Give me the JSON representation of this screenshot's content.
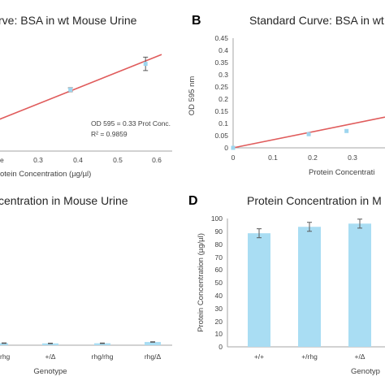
{
  "colors": {
    "bar": "#a9ddf3",
    "marker": "#9dd5ee",
    "fit_line": "#e05c5c",
    "axis": "#a6a6a6",
    "error": "#595959"
  },
  "panels": {
    "A": {
      "title_visible": "rve: BSA in wt Mouse Urine",
      "xlabel_visible": "otein Concentration (µg/µl)",
      "x_ticks": [
        "e",
        "0.3",
        "0.4",
        "0.5",
        "0.6"
      ],
      "equation": "OD 595 = 0.33 Prot Conc.",
      "r2": "R² = 0.9859"
    },
    "B": {
      "label": "B",
      "title_visible": "Standard Curve: BSA in wt",
      "ylabel": "OD 595 nm",
      "xlabel_visible": "Protein Concentrati",
      "y_ticks": [
        "0.45",
        "0.4",
        "0.35",
        "0.3",
        "0.25",
        "0.2",
        "0.15",
        "0.1",
        "0.05",
        "0"
      ],
      "x_ticks": [
        "0",
        "0.1",
        "0.2",
        "0.3"
      ]
    },
    "C": {
      "title_visible": "centration in Mouse Urine",
      "xlabel": "Genotype",
      "x_ticks": [
        "rhg",
        "+/Δ",
        "rhg/rhg",
        "rhg/Δ"
      ]
    },
    "D": {
      "label": "D",
      "title_visible": "Protein Concentration in M",
      "ylabel": "Protein Concentration (µg/µl)",
      "xlabel_visible": "Genotyp",
      "y_ticks": [
        "100",
        "90",
        "80",
        "70",
        "60",
        "50",
        "40",
        "30",
        "20",
        "10",
        "0"
      ],
      "x_ticks": [
        "+/+",
        "+/rhg",
        "+/Δ"
      ]
    }
  },
  "chart_data": [
    {
      "panel": "A",
      "type": "scatter",
      "title": "Standard Curve: BSA in wt Mouse Urine",
      "xlabel": "Protein Concentration (µg/µl)",
      "xlim": [
        0.2,
        0.6
      ],
      "points": [
        {
          "x": 0.38,
          "y": 0.128,
          "err": 0.004
        },
        {
          "x": 0.57,
          "y": 0.182,
          "err": 0.014
        }
      ],
      "fit": {
        "slope": 0.33,
        "intercept": 0.0,
        "equation": "OD 595 = 0.33 Prot Conc.",
        "r2": "R² = 0.9859"
      }
    },
    {
      "panel": "B",
      "type": "scatter",
      "title": "Standard Curve: BSA in wt",
      "xlabel": "Protein Concentration",
      "ylabel": "OD 595 nm",
      "xlim": [
        0,
        0.3
      ],
      "ylim": [
        0,
        0.45
      ],
      "points": [
        {
          "x": 0.0,
          "y": 0.0
        },
        {
          "x": 0.19,
          "y": 0.056
        },
        {
          "x": 0.285,
          "y": 0.069
        }
      ],
      "fit": {
        "slope": 0.33,
        "intercept": 0.0
      }
    },
    {
      "panel": "C",
      "type": "bar",
      "title": "Protein Concentration in Mouse Urine",
      "xlabel": "Genotype",
      "categories": [
        "rhg",
        "+/Δ",
        "rhg/rhg",
        "rhg/Δ"
      ],
      "values": [
        1.6,
        1.4,
        1.5,
        2.5
      ],
      "errors": [
        0.2,
        0.2,
        0.2,
        0.2
      ]
    },
    {
      "panel": "D",
      "type": "bar",
      "title": "Protein Concentration in Mouse Urine",
      "xlabel": "Genotype",
      "ylabel": "Protein Concentration (µg/µl)",
      "ylim": [
        0,
        100
      ],
      "categories": [
        "+/+",
        "+/rhg",
        "+/Δ"
      ],
      "values": [
        88.5,
        93.5,
        96
      ],
      "errors": [
        3.5,
        3.5,
        3.5
      ]
    }
  ]
}
